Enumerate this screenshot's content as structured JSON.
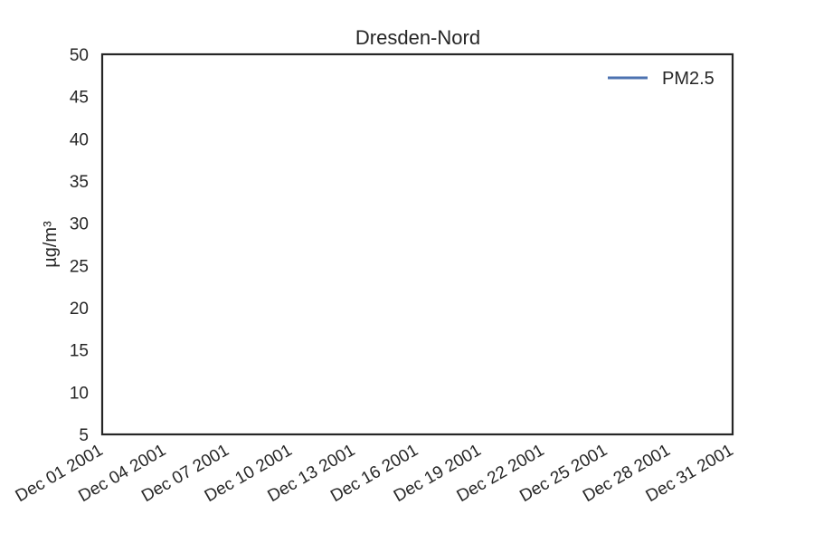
{
  "chart_data": {
    "type": "line",
    "title": "Dresden-Nord",
    "xlabel": "",
    "ylabel": "µg/m³",
    "ylim": [
      5,
      50
    ],
    "yticks": [
      5,
      10,
      15,
      20,
      25,
      30,
      35,
      40,
      45,
      50
    ],
    "xlim": [
      "2001-12-01",
      "2001-12-31"
    ],
    "xticks": [
      {
        "date": "2001-12-01",
        "label": "Dec 01 2001"
      },
      {
        "date": "2001-12-04",
        "label": "Dec 04 2001"
      },
      {
        "date": "2001-12-07",
        "label": "Dec 07 2001"
      },
      {
        "date": "2001-12-10",
        "label": "Dec 10 2001"
      },
      {
        "date": "2001-12-13",
        "label": "Dec 13 2001"
      },
      {
        "date": "2001-12-16",
        "label": "Dec 16 2001"
      },
      {
        "date": "2001-12-19",
        "label": "Dec 19 2001"
      },
      {
        "date": "2001-12-22",
        "label": "Dec 22 2001"
      },
      {
        "date": "2001-12-25",
        "label": "Dec 25 2001"
      },
      {
        "date": "2001-12-28",
        "label": "Dec 28 2001"
      },
      {
        "date": "2001-12-31",
        "label": "Dec 31 2001"
      }
    ],
    "grid": false,
    "legend_position": "top-right",
    "series": [
      {
        "name": "PM2.5",
        "color": "#4c72b0",
        "x": [],
        "y": []
      }
    ]
  }
}
